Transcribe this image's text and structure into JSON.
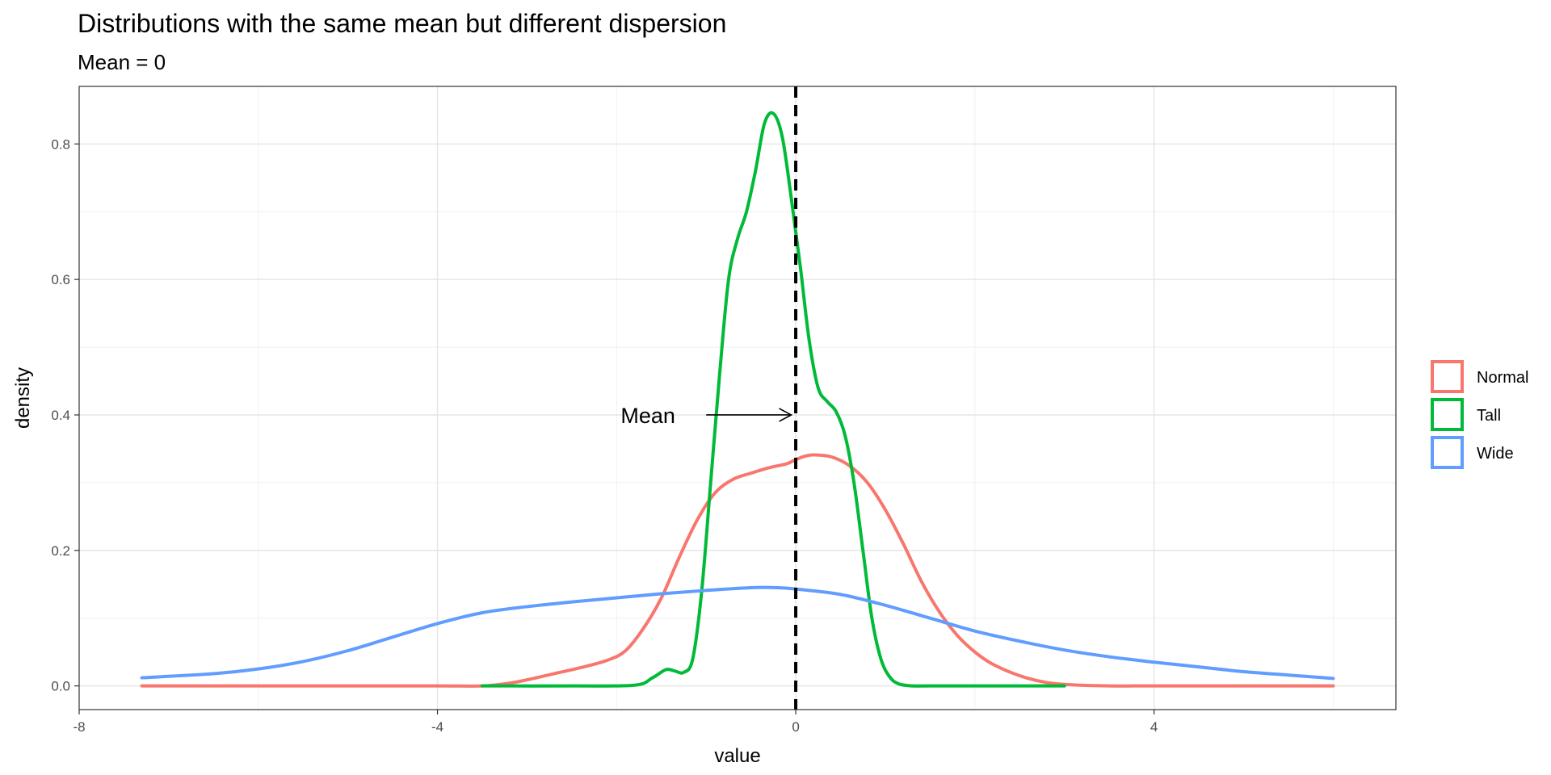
{
  "chart_data": {
    "type": "line",
    "title": "Distributions with the same mean but different dispersion",
    "subtitle": "Mean = 0",
    "xlabel": "value",
    "ylabel": "density",
    "xlim": [
      -8,
      6.7
    ],
    "ylim": [
      -0.035,
      0.885
    ],
    "x_ticks": [
      -8,
      -4,
      0,
      4
    ],
    "x_tick_labels": [
      "-8",
      "-4",
      "0",
      "4"
    ],
    "y_ticks": [
      0,
      0.2,
      0.4,
      0.6,
      0.8
    ],
    "y_tick_labels": [
      "0.0",
      "0.2",
      "0.4",
      "0.6",
      "0.8"
    ],
    "grid": true,
    "legend_position": "right",
    "mean_line": {
      "x": 0,
      "style": "dashed",
      "color": "#000000"
    },
    "annotation": {
      "text": "Mean",
      "x": -1.65,
      "y": 0.4,
      "arrow_from": [
        -1.0,
        0.4
      ],
      "arrow_to": [
        -0.05,
        0.4
      ]
    },
    "series": [
      {
        "name": "Normal",
        "color": "#F8766D",
        "x": [
          -7.3,
          -6,
          -5,
          -4,
          -3.5,
          -3.2,
          -3.0,
          -2.7,
          -2.4,
          -2.1,
          -1.9,
          -1.7,
          -1.5,
          -1.3,
          -1.1,
          -0.9,
          -0.7,
          -0.5,
          -0.3,
          -0.1,
          0.0,
          0.1,
          0.2,
          0.4,
          0.6,
          0.8,
          1.0,
          1.2,
          1.4,
          1.6,
          1.8,
          2.0,
          2.2,
          2.5,
          2.8,
          3.1,
          3.5,
          4,
          5,
          6.0
        ],
        "y": [
          0,
          0,
          0,
          0,
          0,
          0.004,
          0.009,
          0.018,
          0.027,
          0.038,
          0.052,
          0.085,
          0.13,
          0.19,
          0.245,
          0.285,
          0.305,
          0.314,
          0.322,
          0.328,
          0.334,
          0.339,
          0.341,
          0.338,
          0.325,
          0.3,
          0.26,
          0.21,
          0.155,
          0.11,
          0.075,
          0.05,
          0.032,
          0.015,
          0.005,
          0.0015,
          0,
          0,
          0,
          0
        ]
      },
      {
        "name": "Tall",
        "color": "#00BA38",
        "x": [
          -3.5,
          -2.5,
          -1.8,
          -1.6,
          -1.45,
          -1.35,
          -1.25,
          -1.15,
          -1.05,
          -0.95,
          -0.85,
          -0.75,
          -0.65,
          -0.55,
          -0.45,
          -0.35,
          -0.25,
          -0.15,
          -0.05,
          0.05,
          0.15,
          0.25,
          0.35,
          0.45,
          0.55,
          0.65,
          0.75,
          0.85,
          0.95,
          1.05,
          1.15,
          1.3,
          1.5,
          2.0,
          3.0
        ],
        "y": [
          0,
          0,
          0.001,
          0.012,
          0.024,
          0.022,
          0.02,
          0.04,
          0.14,
          0.3,
          0.46,
          0.6,
          0.66,
          0.7,
          0.76,
          0.83,
          0.845,
          0.81,
          0.72,
          0.62,
          0.51,
          0.44,
          0.42,
          0.405,
          0.37,
          0.3,
          0.2,
          0.1,
          0.04,
          0.013,
          0.003,
          0,
          0,
          0,
          0
        ]
      },
      {
        "name": "Wide",
        "color": "#619CFF",
        "x": [
          -7.3,
          -6.5,
          -6,
          -5.5,
          -5,
          -4.5,
          -4,
          -3.5,
          -3,
          -2.5,
          -2,
          -1.5,
          -1,
          -0.5,
          -0.2,
          0,
          0.5,
          1,
          1.5,
          2,
          2.5,
          3,
          3.5,
          4,
          4.5,
          5,
          5.5,
          6.0
        ],
        "y": [
          0.012,
          0.018,
          0.025,
          0.036,
          0.052,
          0.072,
          0.092,
          0.108,
          0.117,
          0.124,
          0.13,
          0.136,
          0.141,
          0.145,
          0.145,
          0.143,
          0.135,
          0.119,
          0.1,
          0.081,
          0.066,
          0.053,
          0.043,
          0.035,
          0.028,
          0.021,
          0.016,
          0.011
        ]
      }
    ]
  }
}
